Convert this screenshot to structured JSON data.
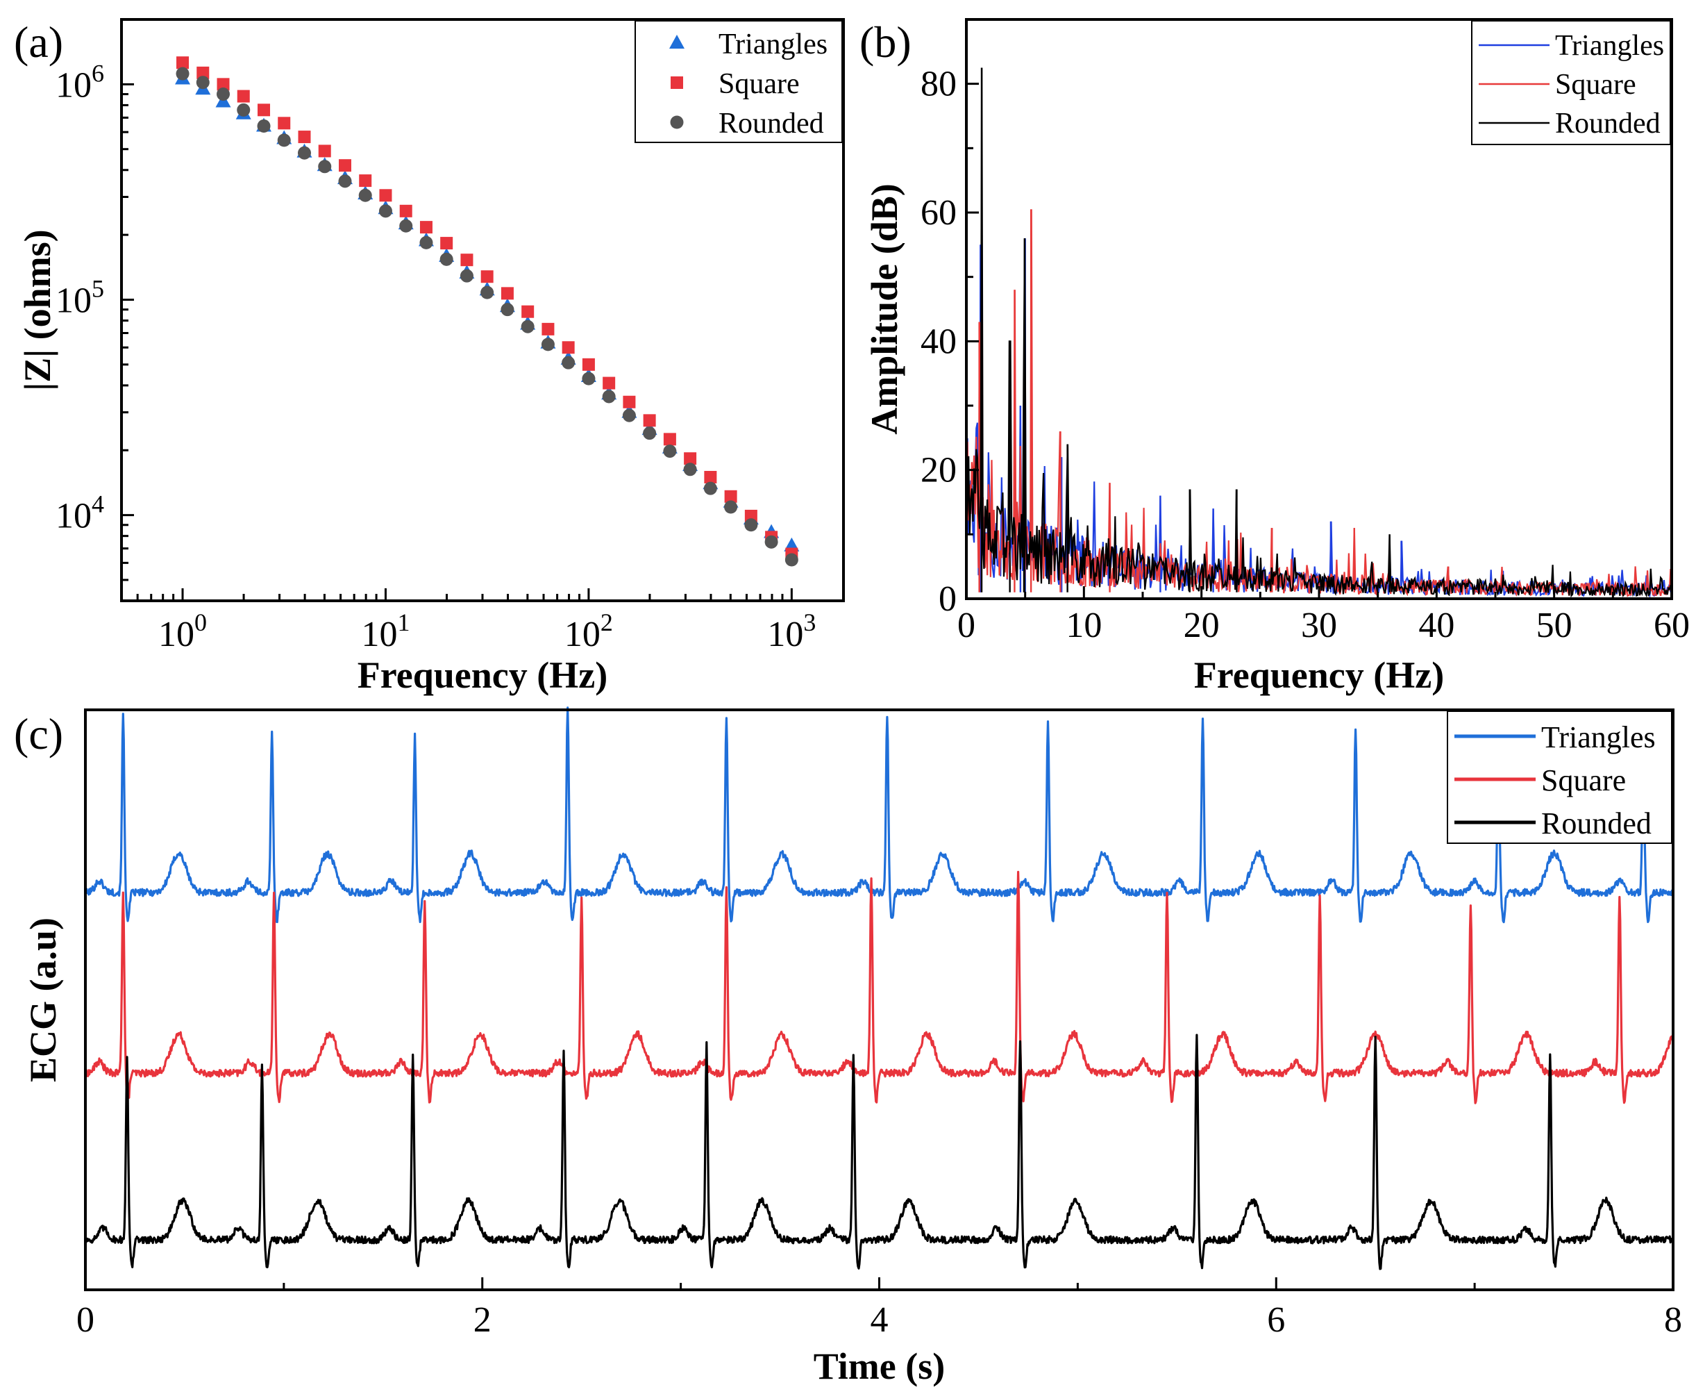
{
  "chart_data": [
    {
      "id": "a",
      "panel_label": "(a)",
      "type": "scatter",
      "xscale": "log",
      "yscale": "log",
      "xlabel": "Frequency (Hz)",
      "ylabel": "|Z| (ohms)",
      "xlim": [
        0.5,
        1800
      ],
      "ylim": [
        4000,
        2000000
      ],
      "xticks": [
        1,
        10,
        100,
        1000
      ],
      "xtick_labels": [
        "10^0",
        "10^1",
        "10^2",
        "10^3"
      ],
      "yticks": [
        10000,
        100000,
        1000000
      ],
      "ytick_labels": [
        "10^4",
        "10^5",
        "10^6"
      ],
      "legend_position": "top-right",
      "x": [
        1,
        1.259,
        1.585,
        1.995,
        2.512,
        3.162,
        3.981,
        5.012,
        6.31,
        7.943,
        10,
        12.59,
        15.85,
        19.95,
        25.12,
        31.62,
        39.81,
        50.12,
        63.1,
        79.43,
        100,
        125.9,
        158.5,
        199.5,
        251.2,
        316.2,
        398.1,
        501.2,
        631,
        794.3,
        1000
      ],
      "series": [
        {
          "name": "Triangles",
          "marker": "triangle",
          "color": "#1f6fd9",
          "values": [
            1060000,
            950000,
            830000,
            730000,
            640000,
            560000,
            485000,
            420000,
            365000,
            310000,
            265000,
            225000,
            188000,
            159000,
            133000,
            111000,
            93000,
            77000,
            63000,
            53000,
            44000,
            36500,
            30000,
            25000,
            20500,
            17000,
            14000,
            11500,
            9600,
            8300,
            7200
          ]
        },
        {
          "name": "Square",
          "marker": "square",
          "color": "#e8343c",
          "values": [
            1260000,
            1130000,
            1000000,
            880000,
            760000,
            660000,
            570000,
            490000,
            420000,
            357000,
            305000,
            258000,
            217000,
            183000,
            153000,
            128000,
            107000,
            88000,
            73000,
            60000,
            50000,
            41000,
            33500,
            27500,
            22500,
            18300,
            15000,
            12200,
            9900,
            7900,
            6600
          ]
        },
        {
          "name": "Rounded",
          "marker": "circle",
          "color": "#555555",
          "values": [
            1120000,
            1020000,
            900000,
            760000,
            640000,
            550000,
            480000,
            415000,
            355000,
            305000,
            258000,
            220000,
            184000,
            154000,
            129000,
            108000,
            90000,
            75000,
            62000,
            51000,
            43000,
            35500,
            29000,
            24000,
            19800,
            16300,
            13300,
            10900,
            9000,
            7500,
            6200
          ]
        }
      ]
    },
    {
      "id": "b",
      "panel_label": "(b)",
      "type": "line",
      "xlabel": "Frequency (Hz)",
      "ylabel": "Amplitude (dB)",
      "xlim": [
        0,
        60
      ],
      "ylim": [
        0,
        90
      ],
      "xticks": [
        0,
        10,
        20,
        30,
        40,
        50,
        60
      ],
      "yticks": [
        0,
        20,
        40,
        60,
        80
      ],
      "legend_position": "top-right",
      "series": [
        {
          "name": "Triangles",
          "color": "#1f3fe0",
          "seed": 11,
          "peaks": [
            [
              1.2,
              55
            ],
            [
              4.6,
              30
            ],
            [
              5.0,
              56
            ],
            [
              8.1,
              22
            ],
            [
              16.5,
              16
            ],
            [
              21,
              14
            ],
            [
              31,
              12
            ],
            [
              37,
              9
            ]
          ]
        },
        {
          "name": "Square",
          "color": "#e83a3a",
          "seed": 23,
          "peaks": [
            [
              1.1,
              43
            ],
            [
              4.1,
              48
            ],
            [
              5.5,
              60.5
            ],
            [
              8.0,
              26
            ],
            [
              12.2,
              18
            ],
            [
              26,
              11
            ],
            [
              33,
              11
            ],
            [
              41,
              5
            ]
          ]
        },
        {
          "name": "Rounded",
          "color": "#000000",
          "seed": 37,
          "peaks": [
            [
              1.3,
              82.5
            ],
            [
              3.7,
              40
            ],
            [
              4.9,
              34
            ],
            [
              4.95,
              56
            ],
            [
              8.6,
              24
            ],
            [
              19,
              17
            ],
            [
              23,
              17
            ],
            [
              36,
              10
            ]
          ]
        }
      ]
    },
    {
      "id": "c",
      "panel_label": "(c)",
      "type": "line",
      "xlabel": "Time (s)",
      "ylabel": "ECG (a.u)",
      "xlim": [
        0,
        8
      ],
      "xticks": [
        0,
        2,
        4,
        6,
        8
      ],
      "legend_position": "top-right",
      "series": [
        {
          "name": "Triangles",
          "color": "#1f6fd9",
          "offset": 2.0,
          "r_peaks": [
            0.19,
            0.94,
            1.66,
            2.43,
            3.23,
            4.04,
            4.85,
            5.63,
            6.4,
            7.12,
            7.85
          ],
          "r_amp": [
            0.78,
            0.7,
            0.68,
            0.82,
            0.77,
            0.78,
            0.74,
            0.77,
            0.72,
            0.55,
            0.55
          ]
        },
        {
          "name": "Square",
          "color": "#e8343c",
          "offset": 1.0,
          "r_peaks": [
            0.19,
            0.95,
            1.71,
            2.5,
            3.23,
            3.96,
            4.7,
            5.45,
            6.22,
            6.98,
            7.73
          ],
          "r_amp": [
            0.8,
            0.78,
            0.75,
            0.76,
            0.8,
            0.85,
            0.88,
            0.8,
            0.78,
            0.74,
            0.78
          ]
        },
        {
          "name": "Rounded",
          "color": "#000000",
          "offset": 0.0,
          "r_peaks": [
            0.21,
            0.89,
            1.65,
            2.41,
            3.13,
            3.87,
            4.71,
            5.6,
            6.5,
            7.38
          ],
          "r_amp": [
            0.8,
            0.75,
            0.8,
            0.82,
            0.85,
            0.8,
            0.88,
            0.9,
            0.9,
            0.82
          ]
        }
      ]
    }
  ]
}
